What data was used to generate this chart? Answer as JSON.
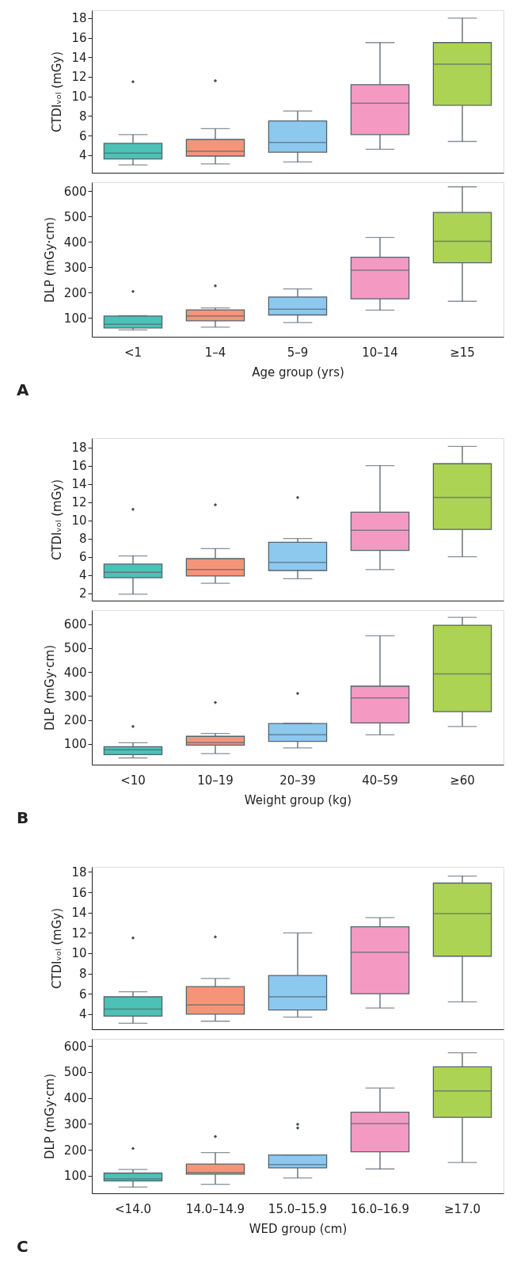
{
  "chart_data": [
    {
      "type": "box",
      "categories": [
        null,
        null,
        null,
        null,
        null
      ],
      "colors": [
        "#4dc1b6",
        "#f4957a",
        "#8dc8ee",
        "#f49ac2",
        "#add355"
      ],
      "ylabel": "CTDIᵥₒₗ (mGy)",
      "ylim": [
        2.2,
        18.8
      ],
      "yticks": [
        4,
        6,
        8,
        10,
        12,
        14,
        16,
        18
      ],
      "tick_labels": "y",
      "boxes": [
        {
          "low": 3.0,
          "q1": 3.6,
          "median": 4.2,
          "q3": 5.2,
          "high": 6.1,
          "outliers": [
            11.5
          ]
        },
        {
          "low": 3.1,
          "q1": 3.9,
          "median": 4.4,
          "q3": 5.6,
          "high": 6.7,
          "outliers": [
            11.6
          ]
        },
        {
          "low": 3.3,
          "q1": 4.3,
          "median": 5.3,
          "q3": 7.5,
          "high": 8.5
        },
        {
          "low": 4.6,
          "q1": 6.1,
          "median": 9.3,
          "q3": 11.2,
          "high": 15.5
        },
        {
          "low": 5.4,
          "q1": 9.1,
          "median": 13.3,
          "q3": 15.5,
          "high": 18.0
        }
      ]
    },
    {
      "type": "box",
      "categories": [
        "<1",
        "1–4",
        "5–9",
        "10–14",
        "≥15"
      ],
      "colors": [
        "#4dc1b6",
        "#f4957a",
        "#8dc8ee",
        "#f49ac2",
        "#add355"
      ],
      "ylabel": "DLP (mGy·cm)",
      "xlabel": "Age group (yrs)",
      "ylim": [
        25,
        635
      ],
      "yticks": [
        100,
        200,
        300,
        400,
        500,
        600
      ],
      "annotations": [
        "A"
      ],
      "boxes": [
        {
          "low": 52,
          "q1": 60,
          "median": 74,
          "q3": 107,
          "high": 108,
          "outliers": [
            204
          ]
        },
        {
          "low": 63,
          "q1": 88,
          "median": 107,
          "q3": 131,
          "high": 139,
          "outliers": [
            226
          ]
        },
        {
          "low": 81,
          "q1": 111,
          "median": 134,
          "q3": 182,
          "high": 214
        },
        {
          "low": 130,
          "q1": 175,
          "median": 288,
          "q3": 339,
          "high": 417
        },
        {
          "low": 165,
          "q1": 317,
          "median": 402,
          "q3": 516,
          "high": 617
        }
      ]
    },
    {
      "type": "box",
      "categories": [
        null,
        null,
        null,
        null,
        null
      ],
      "colors": [
        "#4dc1b6",
        "#f4957a",
        "#8dc8ee",
        "#f49ac2",
        "#add355"
      ],
      "ylabel": "CTDIᵥₒₗ (mGy)",
      "ylim": [
        1.2,
        19
      ],
      "yticks": [
        2,
        4,
        6,
        8,
        10,
        12,
        14,
        16,
        18
      ],
      "tick_labels": "y",
      "boxes": [
        {
          "low": 1.9,
          "q1": 3.7,
          "median": 4.3,
          "q3": 5.2,
          "high": 6.1,
          "outliers": [
            11.2
          ]
        },
        {
          "low": 3.1,
          "q1": 3.9,
          "median": 4.6,
          "q3": 5.8,
          "high": 6.9,
          "outliers": [
            11.7
          ]
        },
        {
          "low": 3.6,
          "q1": 4.5,
          "median": 5.4,
          "q3": 7.6,
          "high": 8.0,
          "outliers": [
            12.5
          ]
        },
        {
          "low": 4.6,
          "q1": 6.7,
          "median": 8.9,
          "q3": 10.9,
          "high": 16.0
        },
        {
          "low": 6.0,
          "q1": 9.0,
          "median": 12.5,
          "q3": 16.2,
          "high": 18.1
        }
      ]
    },
    {
      "type": "box",
      "categories": [
        "<10",
        "10–19",
        "20–39",
        "40–59",
        "≥60"
      ],
      "colors": [
        "#4dc1b6",
        "#f4957a",
        "#8dc8ee",
        "#f49ac2",
        "#add355"
      ],
      "ylabel": "DLP (mGy·cm)",
      "xlabel": "Weight group (kg)",
      "ylim": [
        14,
        658
      ],
      "yticks": [
        100,
        200,
        300,
        400,
        500,
        600
      ],
      "annotations": [
        "B"
      ],
      "boxes": [
        {
          "low": 42,
          "q1": 56,
          "median": 76,
          "q3": 89,
          "high": 105,
          "outliers": [
            173
          ]
        },
        {
          "low": 60,
          "q1": 95,
          "median": 106,
          "q3": 132,
          "high": 144,
          "outliers": [
            273
          ]
        },
        {
          "low": 84,
          "q1": 111,
          "median": 139,
          "q3": 185,
          "high": 186,
          "outliers": [
            311
          ]
        },
        {
          "low": 138,
          "q1": 188,
          "median": 292,
          "q3": 341,
          "high": 551
        },
        {
          "low": 173,
          "q1": 235,
          "median": 392,
          "q3": 595,
          "high": 628
        }
      ]
    },
    {
      "type": "box",
      "categories": [
        null,
        null,
        null,
        null,
        null
      ],
      "colors": [
        "#4dc1b6",
        "#f4957a",
        "#8dc8ee",
        "#f49ac2",
        "#add355"
      ],
      "ylabel": "CTDIᵥₒₗ (mGy)",
      "ylim": [
        2.5,
        18.5
      ],
      "yticks": [
        4,
        6,
        8,
        10,
        12,
        14,
        16,
        18
      ],
      "tick_labels": "y",
      "boxes": [
        {
          "low": 3.1,
          "q1": 3.8,
          "median": 4.5,
          "q3": 5.7,
          "high": 6.2,
          "outliers": [
            11.5
          ]
        },
        {
          "low": 3.3,
          "q1": 4.0,
          "median": 4.9,
          "q3": 6.7,
          "high": 7.5,
          "outliers": [
            11.6
          ]
        },
        {
          "low": 3.7,
          "q1": 4.4,
          "median": 5.7,
          "q3": 7.8,
          "high": 12.0
        },
        {
          "low": 4.6,
          "q1": 6.0,
          "median": 10.1,
          "q3": 12.6,
          "high": 13.5
        },
        {
          "low": 5.2,
          "q1": 9.7,
          "median": 13.9,
          "q3": 16.9,
          "high": 17.6
        }
      ]
    },
    {
      "type": "box",
      "categories": [
        "<14.0",
        "14.0–14.9",
        "15.0–15.9",
        "16.0–16.9",
        "≥17.0"
      ],
      "colors": [
        "#4dc1b6",
        "#f4957a",
        "#8dc8ee",
        "#f49ac2",
        "#add355"
      ],
      "ylabel": "DLP (mGy·cm)",
      "xlabel": "WED group (cm)",
      "ylim": [
        32,
        628
      ],
      "yticks": [
        100,
        200,
        300,
        400,
        500,
        600
      ],
      "annotations": [
        "C"
      ],
      "boxes": [
        {
          "low": 56,
          "q1": 80,
          "median": 88,
          "q3": 110,
          "high": 124,
          "outliers": [
            205
          ]
        },
        {
          "low": 67,
          "q1": 106,
          "median": 112,
          "q3": 145,
          "high": 189,
          "outliers": [
            251
          ]
        },
        {
          "low": 91,
          "q1": 130,
          "median": 143,
          "q3": 180,
          "high": 180,
          "outliers": [
            284,
            298
          ]
        },
        {
          "low": 126,
          "q1": 192,
          "median": 301,
          "q3": 345,
          "high": 438
        },
        {
          "low": 151,
          "q1": 325,
          "median": 427,
          "q3": 520,
          "high": 574
        }
      ]
    }
  ]
}
